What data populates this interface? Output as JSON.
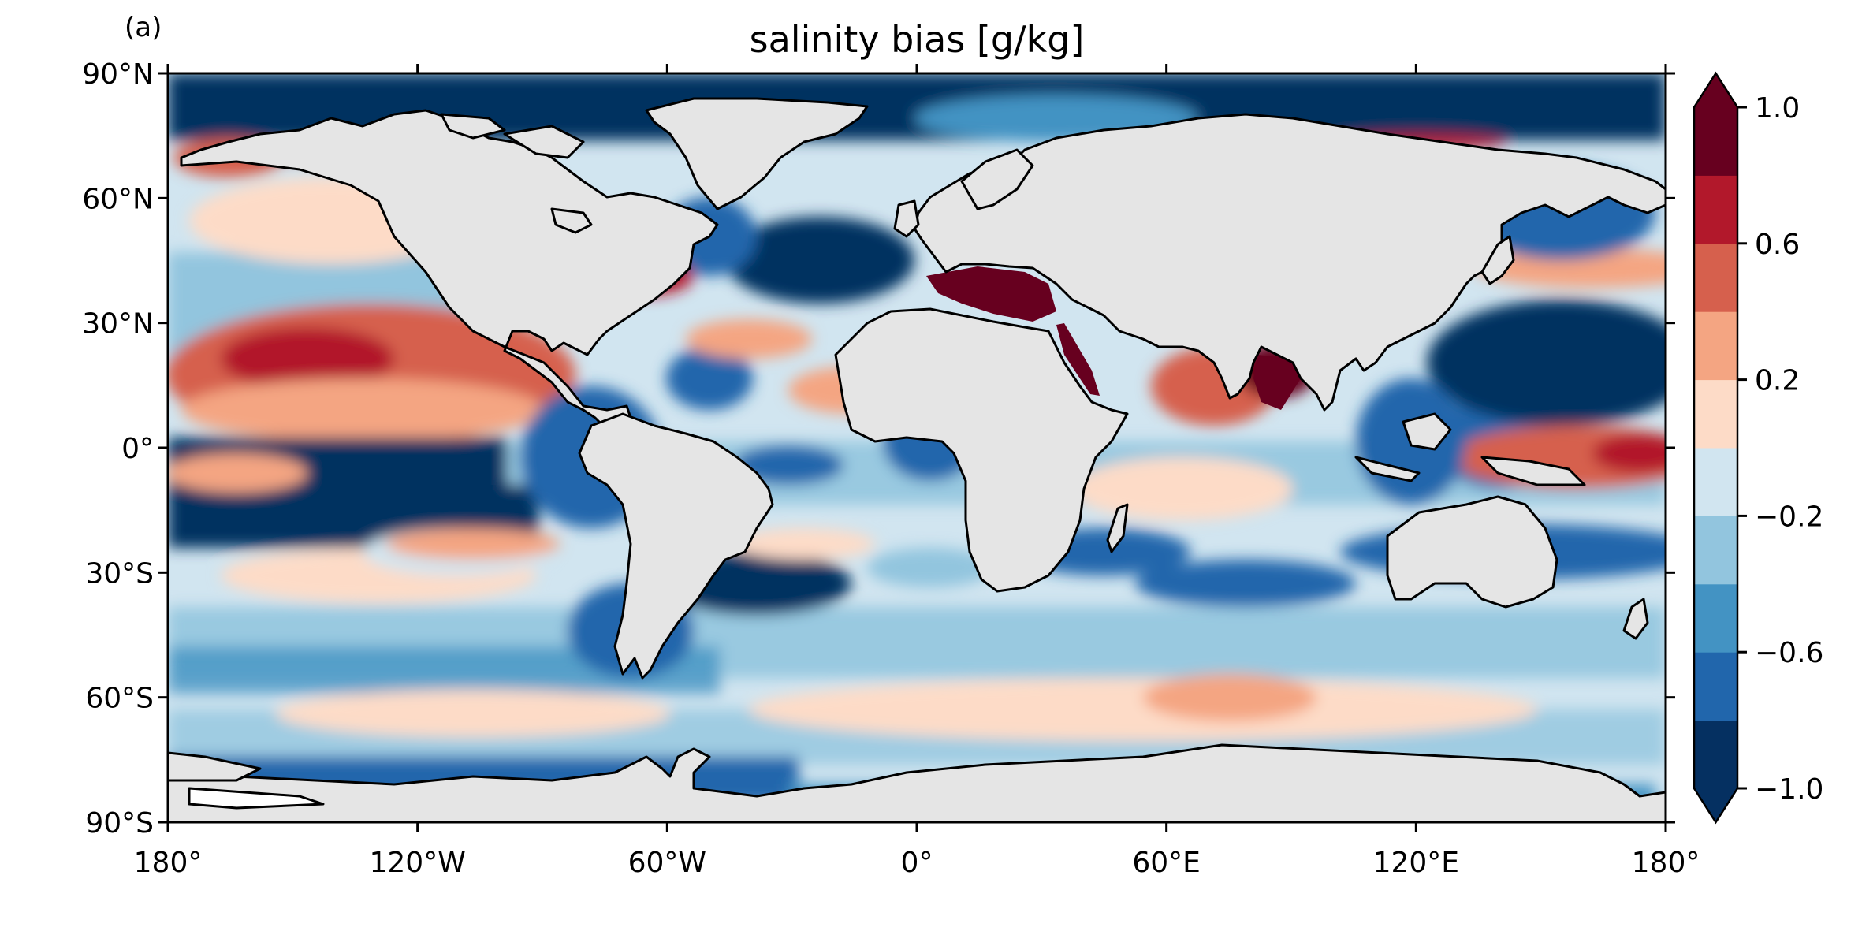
{
  "panel_label": "(a)",
  "title": "salinity bias [g/kg]",
  "axes": {
    "x_ticks": [
      "180°",
      "120°W",
      "60°W",
      "0°",
      "60°E",
      "120°E",
      "180°"
    ],
    "y_ticks": [
      "90°N",
      "60°N",
      "30°N",
      "0°",
      "30°S",
      "60°S",
      "90°S"
    ]
  },
  "colorbar": {
    "tick_labels": [
      "1.0",
      "0.6",
      "0.2",
      "−0.2",
      "−0.6",
      "−1.0"
    ],
    "levels": [
      -1.0,
      -0.8,
      -0.6,
      -0.4,
      -0.2,
      0.0,
      0.2,
      0.4,
      0.6,
      0.8,
      1.0
    ],
    "colors": [
      "#053061",
      "#2166ac",
      "#4393c3",
      "#92c5de",
      "#d1e5f0",
      "#fddbc7",
      "#f4a582",
      "#d6604d",
      "#b2182b",
      "#67001f"
    ],
    "extend": "both"
  },
  "colors": {
    "land": "#e5e5e5",
    "ocean_background": "#d1e5f0",
    "coastline": "#000000"
  }
}
